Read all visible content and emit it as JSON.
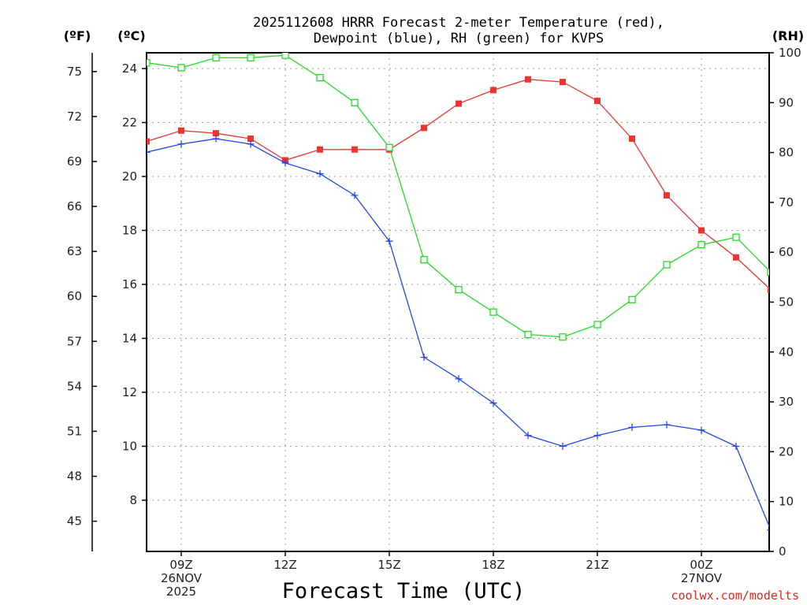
{
  "chart_data": {
    "type": "line",
    "title_line1": "2025112608 HRRR Forecast 2-meter Temperature (red),",
    "title_line2": "Dewpoint (blue), RH (green) for KVPS",
    "xlabel": "Forecast Time (UTC)",
    "credit": "coolwx.com/modelts",
    "units": {
      "fahrenheit": "(ºF)",
      "celsius": "(ºC)",
      "rh": "(RH)"
    },
    "x_hours": [
      8,
      9,
      10,
      11,
      12,
      13,
      14,
      15,
      16,
      17,
      18,
      19,
      20,
      21,
      22,
      23,
      0,
      1,
      2
    ],
    "x_ticks": [
      {
        "index": 1,
        "lines": [
          "09Z",
          "26NOV",
          "2025"
        ]
      },
      {
        "index": 4,
        "lines": [
          "12Z"
        ]
      },
      {
        "index": 7,
        "lines": [
          "15Z"
        ]
      },
      {
        "index": 10,
        "lines": [
          "18Z"
        ]
      },
      {
        "index": 13,
        "lines": [
          "21Z"
        ]
      },
      {
        "index": 16,
        "lines": [
          "00Z",
          "27NOV"
        ]
      }
    ],
    "celsius_axis": {
      "min": 6,
      "max": 24.6,
      "ticks": [
        8,
        10,
        12,
        14,
        16,
        18,
        20,
        22,
        24
      ]
    },
    "fahrenheit_ticks": [
      45,
      48,
      51,
      54,
      57,
      60,
      63,
      66,
      69,
      72,
      75
    ],
    "rh_axis": {
      "min": 0,
      "max": 100,
      "ticks": [
        0,
        10,
        20,
        30,
        40,
        50,
        60,
        70,
        80,
        90,
        100
      ]
    },
    "series": [
      {
        "name": "Temperature",
        "unit": "C",
        "color": "#ee3333",
        "marker": "filled-square",
        "values": [
          21.3,
          21.7,
          21.6,
          21.4,
          20.6,
          21.0,
          21.0,
          21.0,
          21.8,
          22.7,
          23.2,
          23.6,
          23.5,
          22.8,
          21.4,
          19.3,
          18.0,
          17.0,
          15.8
        ]
      },
      {
        "name": "Dewpoint",
        "unit": "C",
        "color": "#2244ee",
        "marker": "plus",
        "values": [
          20.9,
          21.2,
          21.4,
          21.2,
          20.5,
          20.1,
          19.3,
          17.6,
          13.3,
          12.5,
          11.6,
          10.4,
          10.0,
          10.4,
          10.7,
          10.8,
          10.6,
          10.0,
          6.9
        ]
      },
      {
        "name": "RH",
        "unit": "%",
        "color": "#22dd22",
        "marker": "open-square",
        "values": [
          98,
          97,
          99,
          99,
          99.5,
          95,
          90,
          81,
          58.5,
          52.5,
          48,
          43.5,
          43,
          45.5,
          50.5,
          57.5,
          61.5,
          63,
          56
        ]
      }
    ]
  }
}
